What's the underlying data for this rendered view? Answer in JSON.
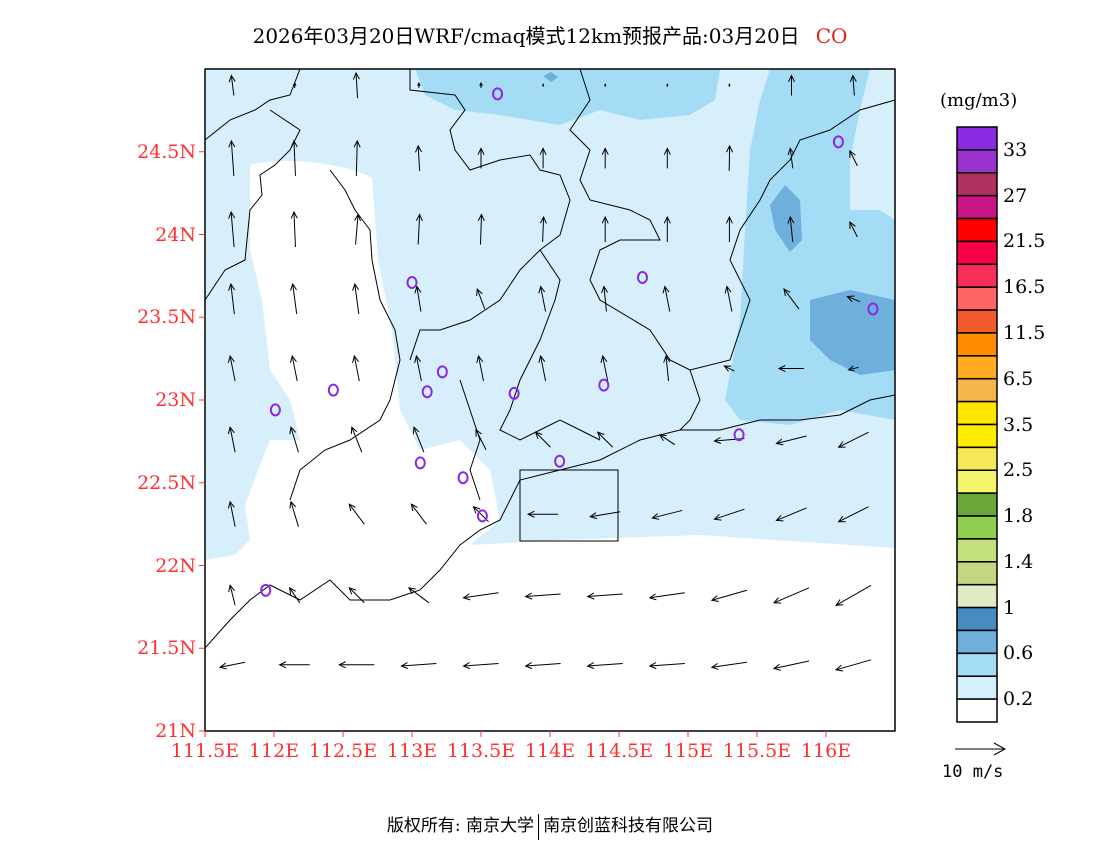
{
  "title": {
    "main": "2026年03月20日WRF/cmaq模式12km预报产品:03月20日",
    "species": "CO"
  },
  "axes": {
    "x_labels": [
      "111.5E",
      "112E",
      "112.5E",
      "113E",
      "113.5E",
      "114E",
      "114.5E",
      "115E",
      "115.5E",
      "116E"
    ],
    "x_values": [
      111.5,
      112,
      112.5,
      113,
      113.5,
      114,
      114.5,
      115,
      115.5,
      116
    ],
    "y_labels": [
      "21N",
      "21.5N",
      "22N",
      "22.5N",
      "23N",
      "23.5N",
      "24N",
      "24.5N"
    ],
    "y_values": [
      21,
      21.5,
      22,
      22.5,
      23,
      23.5,
      24,
      24.5
    ],
    "lon_range": [
      111.5,
      116.5
    ],
    "lat_range": [
      21,
      25
    ]
  },
  "colorbar": {
    "unit": "(mg/m3)",
    "colors": [
      "#8a2be2",
      "#9a32cd",
      "#b03060",
      "#c71585",
      "#ff0000",
      "#f80048",
      "#f6305a",
      "#ff6464",
      "#f05a2d",
      "#ff8c00",
      "#ffaa20",
      "#f5b54b",
      "#ffe600",
      "#ffeb00",
      "#f5e65a",
      "#f5f56e",
      "#6ba63a",
      "#90cf4f",
      "#c3e17d",
      "#c3d782",
      "#e1ebc3",
      "#468cc3",
      "#6eafdc",
      "#a5dcf5",
      "#d7effa",
      "#ffffff"
    ],
    "labels": [
      "33",
      "27",
      "21.5",
      "16.5",
      "11.5",
      "6.5",
      "3.5",
      "2.5",
      "1.8",
      "1.4",
      "1",
      "0.6",
      "0.2"
    ]
  },
  "vector_ref": {
    "label": "10 m/s",
    "speed": 10
  },
  "wind": {
    "lon": [
      111.7,
      112.15,
      112.6,
      113.05,
      113.5,
      113.95,
      114.4,
      114.85,
      115.3,
      115.75,
      116.2
    ],
    "lat": [
      24.9,
      24.46,
      24.03,
      23.61,
      23.19,
      22.76,
      22.31,
      21.82,
      21.4
    ],
    "u": [
      [
        -0.5,
        0,
        -0.3,
        0,
        0,
        0,
        0,
        0,
        0,
        0,
        -0.3
      ],
      [
        -0.5,
        -0.3,
        0.2,
        -0.3,
        0,
        0,
        0,
        0,
        0.1,
        -0.5,
        -1.5
      ],
      [
        -0.6,
        -0.3,
        0.5,
        0.3,
        0.2,
        0.2,
        0,
        0,
        0,
        -0.5,
        -1.5
      ],
      [
        -0.7,
        -0.8,
        -0.8,
        -0.8,
        -1.5,
        -1,
        -0.5,
        -1,
        -1,
        -3,
        -2.5
      ],
      [
        -1,
        -1,
        -1,
        -1,
        -1,
        -1,
        -1,
        -0.5,
        -2,
        -5,
        -2
      ],
      [
        -1,
        -1.5,
        -2,
        -2,
        -2,
        -3,
        -3,
        -3,
        -6,
        -6,
        -6
      ],
      [
        -1,
        -1.5,
        -3,
        -3,
        -3,
        -6,
        -6,
        -6,
        -6,
        -6,
        -6
      ],
      [
        -1,
        -2,
        -3,
        -4,
        -7,
        -7,
        -7,
        -7,
        -7,
        -7,
        -7
      ],
      [
        -5,
        -6,
        -7,
        -7,
        -7,
        -7,
        -7,
        -7,
        -7,
        -7,
        -7
      ]
    ],
    "v": [
      [
        4,
        1,
        5,
        1,
        1,
        0.5,
        0.5,
        0.5,
        0.5,
        4,
        4
      ],
      [
        7,
        7,
        7,
        5,
        4,
        4,
        4,
        4,
        5,
        4,
        3
      ],
      [
        7,
        7,
        6,
        6,
        6,
        5,
        5,
        5,
        5,
        5,
        3
      ],
      [
        6,
        6,
        6,
        5,
        4,
        5,
        5,
        5,
        5,
        4,
        1
      ],
      [
        5,
        5,
        5,
        5,
        5,
        5,
        5,
        5,
        1,
        0,
        -0.5
      ],
      [
        5,
        5,
        5,
        5,
        4,
        3,
        3,
        2,
        -0.5,
        -1.5,
        -3
      ],
      [
        5,
        5,
        4,
        4,
        3,
        0,
        -1,
        -1.5,
        -2,
        -2.5,
        -3
      ],
      [
        4,
        3,
        3,
        3,
        -1,
        -0.5,
        -0.5,
        -1,
        -2,
        -3,
        -4
      ],
      [
        -1,
        0,
        0,
        -0.5,
        -0.5,
        -0.5,
        -0.5,
        -0.5,
        -1,
        -1.5,
        -2
      ]
    ]
  },
  "stations": [
    [
      113.62,
      24.85
    ],
    [
      116.09,
      24.56
    ],
    [
      113.0,
      23.71
    ],
    [
      114.67,
      23.74
    ],
    [
      116.34,
      23.55
    ],
    [
      112.43,
      23.06
    ],
    [
      112.01,
      22.94
    ],
    [
      113.22,
      23.17
    ],
    [
      113.11,
      23.05
    ],
    [
      113.74,
      23.04
    ],
    [
      114.39,
      23.09
    ],
    [
      115.37,
      22.79
    ],
    [
      113.06,
      22.62
    ],
    [
      113.37,
      22.53
    ],
    [
      114.07,
      22.63
    ],
    [
      113.51,
      22.3
    ],
    [
      111.94,
      21.85
    ]
  ],
  "station_color": "#8a2be2",
  "footer": {
    "left": "版权所有: 南京大学",
    "right": "南京创蓝科技有限公司"
  }
}
